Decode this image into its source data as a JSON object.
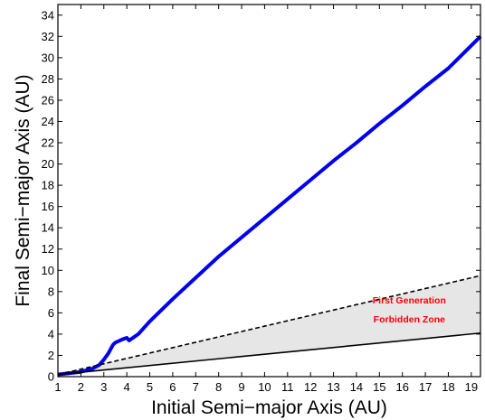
{
  "chart_data": {
    "type": "line",
    "xlabel": "Initial Semi−major Axis (AU)",
    "ylabel": "Final Semi−major Axis (AU)",
    "xlim": [
      1,
      19.4
    ],
    "ylim": [
      0,
      35
    ],
    "xticks": [
      1,
      2,
      3,
      4,
      5,
      6,
      7,
      8,
      9,
      10,
      11,
      12,
      13,
      14,
      15,
      16,
      17,
      18,
      19
    ],
    "yticks": [
      0,
      2,
      4,
      6,
      8,
      10,
      12,
      14,
      16,
      18,
      20,
      22,
      24,
      26,
      28,
      30,
      32,
      34
    ],
    "grid": false,
    "legend": "none",
    "series": [
      {
        "color": "#0000ee",
        "style": "solid-thick",
        "x": [
          1.0,
          2.0,
          2.5,
          2.8,
          3.0,
          3.2,
          3.4,
          3.5,
          3.8,
          4.0,
          4.1,
          4.5,
          5,
          6,
          7,
          8,
          9,
          10,
          11,
          12,
          13,
          14,
          15,
          16,
          17,
          18,
          19.4
        ],
        "y": [
          0.2,
          0.45,
          0.75,
          1.1,
          1.6,
          2.2,
          3.0,
          3.2,
          3.5,
          3.65,
          3.4,
          4.0,
          5.2,
          7.3,
          9.3,
          11.3,
          13.1,
          14.9,
          16.7,
          18.5,
          20.3,
          22.0,
          23.8,
          25.5,
          27.3,
          29.0,
          32.0
        ]
      },
      {
        "color": "#000000",
        "style": "dashed",
        "x": [
          1.0,
          19.4
        ],
        "y": [
          0.2,
          9.5
        ]
      },
      {
        "color": "#000000",
        "style": "solid",
        "x": [
          1.0,
          19.4
        ],
        "y": [
          0.2,
          4.1
        ]
      }
    ],
    "shaded_region": {
      "fill": "#e6e6e6",
      "between": "dashed and solid black lines"
    },
    "annotations": [
      {
        "line1": "First Generation",
        "line2": "Forbidden Zone",
        "x": 16.3,
        "y1": 6.9,
        "y2": 5.1,
        "color": "#ff0000"
      }
    ]
  }
}
